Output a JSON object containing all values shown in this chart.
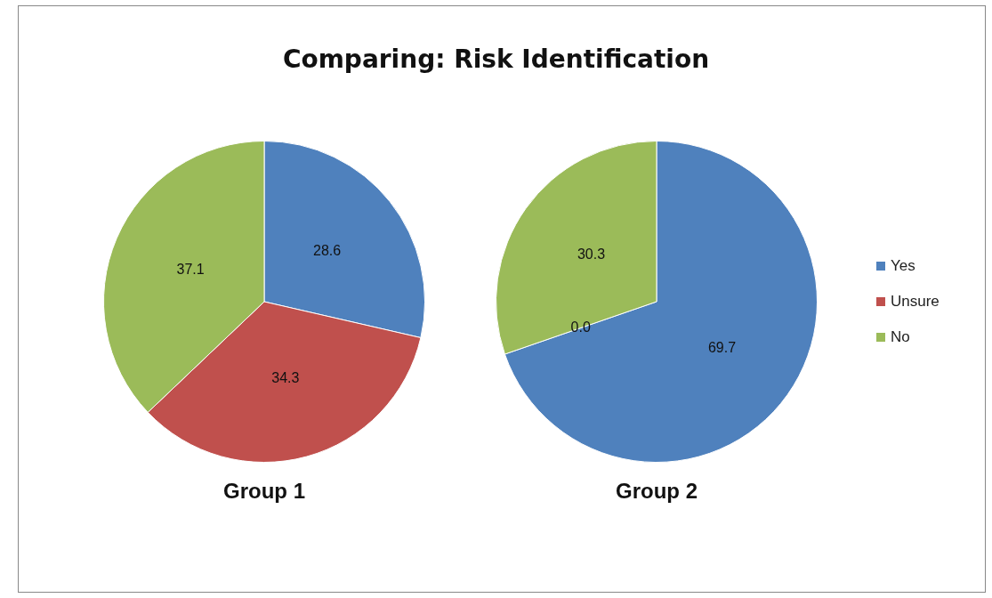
{
  "chart_data": [
    {
      "type": "pie",
      "title": "Comparing: Risk Identification",
      "xlabel": "Group 1",
      "categories": [
        null,
        null,
        null
      ],
      "values": [
        28.6,
        34.3,
        37.1
      ],
      "colors": [
        "#4f81bd",
        "#c0504d",
        "#9bbb59"
      ],
      "data_labels": true
    },
    {
      "type": "pie",
      "xlabel": "Group 2",
      "categories": [
        "Yes",
        "Unsure",
        "No"
      ],
      "values": [
        69.7,
        0.0,
        30.3
      ],
      "value_labels": [
        "69.7",
        "0.0",
        "30.3"
      ],
      "colors": [
        "#4f81bd",
        "#c0504d",
        "#9bbb59"
      ],
      "legend": "right"
    }
  ]
}
